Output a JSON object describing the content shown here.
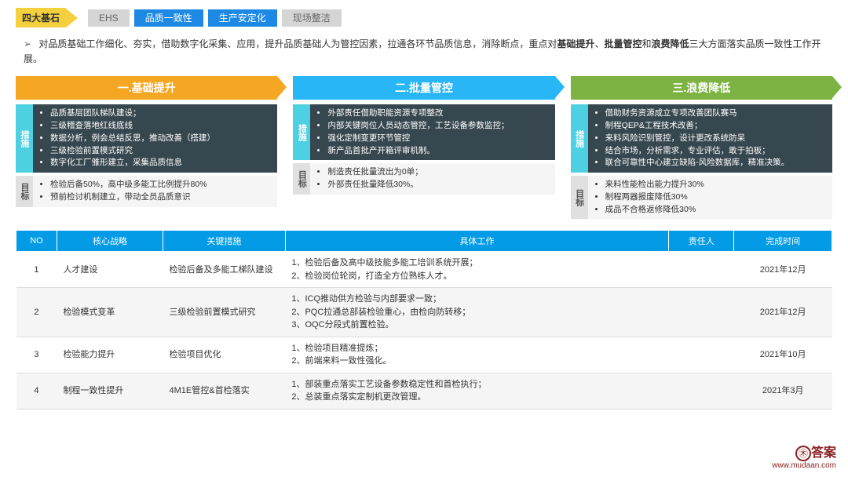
{
  "header": {
    "badge": "四大基石",
    "tags": [
      {
        "text": "EHS",
        "cls": "tag-gray"
      },
      {
        "text": "品质一致性",
        "cls": "tag-blue"
      },
      {
        "text": "生产安定化",
        "cls": "tag-blue"
      },
      {
        "text": "现场整洁",
        "cls": "tag-gray"
      }
    ]
  },
  "intro": {
    "pre": "对品质基础工作细化、夯实，借助数字化采集、应用，提升品质基础人为管控因素，拉通各环节品质信息，消除断点，重点对",
    "b1": "基础提升",
    "m1": "、",
    "b2": "批量管控",
    "m2": "和",
    "b3": "浪费降低",
    "post": "三大方面落实品质一致性工作开展。"
  },
  "pillars": [
    {
      "title": "一.基础提升",
      "title_cls": "t-orange",
      "measures": [
        "品质基层团队梯队建设；",
        "三级稽查落地红线底线",
        "数据分析，例会总结反思，推动改善（搭建）",
        "三级检验前置模式研究",
        "数字化工厂雏形建立，采集品质信息"
      ],
      "targets": [
        "检验后备50%，高中级多能工比例提升80%",
        "预前检讨机制建立，带动全员品质意识"
      ]
    },
    {
      "title": "二.批量管控",
      "title_cls": "t-blue",
      "measures": [
        "外部责任借助职能资源专项整改",
        "内部关键岗位人员动态管控，工艺设备参数监控；",
        "强化定制变更环节管控",
        "新产品首批产开箱评审机制。"
      ],
      "targets": [
        "制造责任批量流出为0单；",
        "外部责任批量降低30%。"
      ]
    },
    {
      "title": "三.浪费降低",
      "title_cls": "t-green",
      "measures": [
        "借助财务资源成立专项改善团队赛马",
        "制程QEP&工程技术改善；",
        "来料风险识别管控，设计更改系统防呆",
        "结合市场，分析需求，专业评估，敢于拍板；",
        "联合可靠性中心建立缺陷-风险数据库，精准决策。"
      ],
      "targets": [
        "来料性能检出能力提升30%",
        "制程两器报废降低30%",
        "成品不合格返修降低30%"
      ]
    }
  ],
  "table": {
    "headers": [
      "NO",
      "核心战略",
      "关键措施",
      "具体工作",
      "责任人",
      "完成时间"
    ],
    "col_widths": [
      "5%",
      "13%",
      "15%",
      "47%",
      "8%",
      "12%"
    ],
    "rows": [
      {
        "no": "1",
        "strategy": "人才建设",
        "measure": "检验后备及多能工梯队建设",
        "work": "1、检验后备及高中级技能多能工培训系统开展；\n2、检验岗位轮岗，打造全方位熟练人才。",
        "owner": "",
        "due": "2021年12月"
      },
      {
        "no": "2",
        "strategy": "检验模式变革",
        "measure": "三级检验前置模式研究",
        "work": "1、ICQ推动供方检验与内部要求一致；\n2、PQC拉通总部装检验重心，由检向防转移；\n3、OQC分段式前置检验。",
        "owner": "",
        "due": "2021年12月"
      },
      {
        "no": "3",
        "strategy": "检验能力提升",
        "measure": "检验项目优化",
        "work": "1、检验项目精准提炼；\n2、前端来料一致性强化。",
        "owner": "",
        "due": "2021年10月"
      },
      {
        "no": "4",
        "strategy": "制程一致性提升",
        "measure": "4M1E管控&首检落实",
        "work": "1、部装重点落实工艺设备参数稳定性和首检执行；\n2、总装重点落实定制机更改管理。",
        "owner": "",
        "due": "2021年3月"
      }
    ]
  },
  "watermark": {
    "logo": "㊍",
    "name": "答案",
    "url": "www.mudaan.com"
  },
  "labels": {
    "measure": "措施",
    "target": "目标"
  },
  "colors": {
    "header_bg": "#039be5",
    "dark_panel": "#37474f"
  }
}
